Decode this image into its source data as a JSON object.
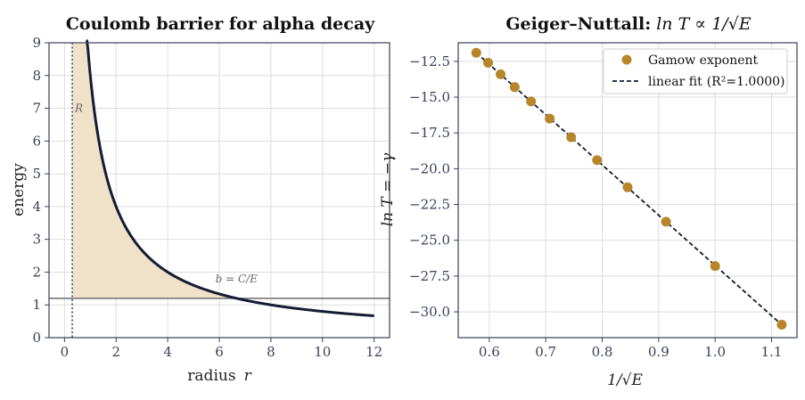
{
  "chart_data": [
    {
      "type": "line",
      "title": "Coulomb barrier for alpha decay",
      "xlabel": "radius",
      "xlabel_symbol": "r",
      "ylabel": "energy",
      "xlim": [
        -0.6,
        12.6
      ],
      "ylim": [
        0,
        9
      ],
      "x_ticks": [
        0,
        2,
        4,
        6,
        8,
        10,
        12
      ],
      "y_ticks": [
        0,
        1,
        2,
        3,
        4,
        5,
        6,
        7,
        8,
        9
      ],
      "grid": true,
      "coulomb_constant": 8,
      "curve_x_range": [
        0.3,
        12
      ],
      "energy_level": 1.2,
      "nuclear_radius": 0.3,
      "nuclear_radius_label": "R",
      "turning_point_label": "b = C/E",
      "colors": {
        "curve": "#141b33",
        "fill": "#f0e2c8",
        "energy_line": "#808080",
        "radius_line": "#3a4a7a"
      }
    },
    {
      "type": "scatter",
      "title_bold": "Geiger–Nuttall:",
      "title_math": "ln T ∝ 1/√E",
      "xlabel": "1/√E",
      "ylabel": "ln T = −γ",
      "xlim": [
        0.545,
        1.145
      ],
      "ylim": [
        -31.8,
        -11.2
      ],
      "x_ticks": [
        0.6,
        0.7,
        0.8,
        0.9,
        1.0,
        1.1
      ],
      "y_ticks": [
        -12.5,
        -15.0,
        -17.5,
        -20.0,
        -22.5,
        -25.0,
        -27.5,
        -30.0
      ],
      "grid": true,
      "legend_placement": "top-right",
      "series": [
        {
          "name": "Gamow exponent",
          "x": [
            0.577,
            0.598,
            0.62,
            0.645,
            0.674,
            0.707,
            0.745,
            0.791,
            0.845,
            0.913,
            1.0,
            1.118
          ],
          "y": [
            -11.9,
            -12.6,
            -13.4,
            -14.3,
            -15.3,
            -16.5,
            -17.8,
            -19.4,
            -21.3,
            -23.7,
            -26.8,
            -30.9
          ],
          "color": "#b8862a"
        },
        {
          "name": "linear fit",
          "name_suffix": "(R²=1.0000)",
          "x": [
            0.577,
            1.118
          ],
          "y": [
            -11.9,
            -30.9
          ],
          "color": "#141b33"
        }
      ]
    }
  ]
}
